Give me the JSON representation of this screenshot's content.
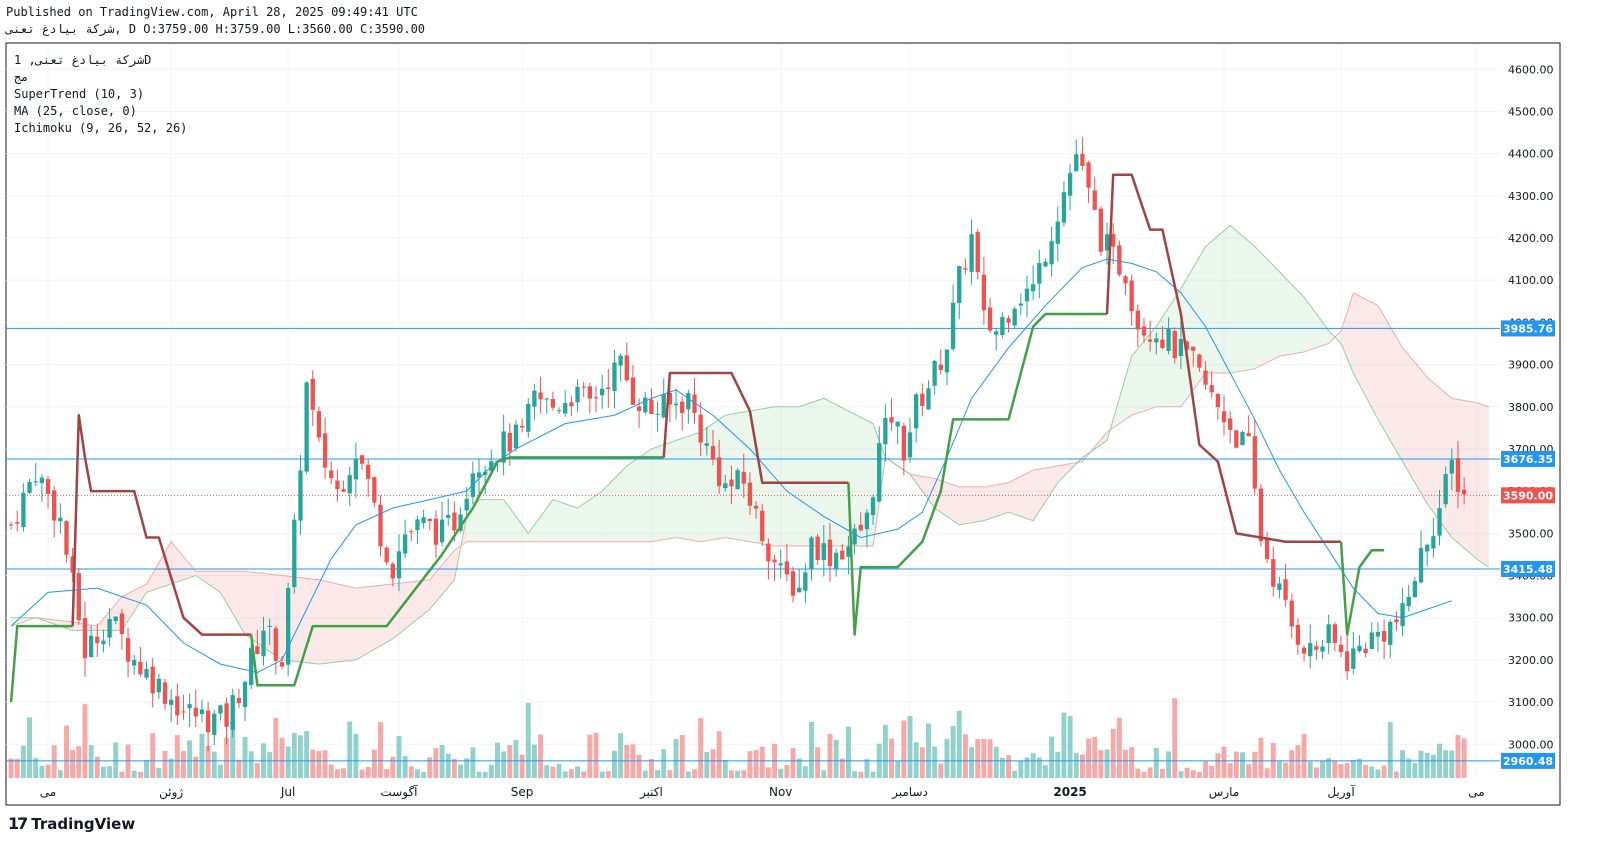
{
  "header": {
    "published": "Published on TradingView.com, April 28, 2025 09:49:41 UTC",
    "ohlc": "شرکة بیادغ تعنی, D O:3759.00 H:3759.00 L:3560.00 C:3590.00"
  },
  "legend": {
    "symbol": "شرکة بیادغ تعنی, 1D",
    "exchange": "مج",
    "supertrend": "SuperTrend (10, 3)",
    "ma": "MA (25, close, 0)",
    "ichimoku": "Ichimoku (9, 26, 52, 26)"
  },
  "brand": {
    "name": "TradingView",
    "logo_text": "17"
  },
  "colors": {
    "up": "#26a69a",
    "down": "#ef5350",
    "supertrend_up": "#43a047",
    "supertrend_down": "#a04343",
    "ma": "#2196f3",
    "cloud_green": "#a5d6a7",
    "cloud_red": "#ef9a9a",
    "hline": "#2196f3",
    "last": "#ef5350"
  },
  "chart_data": {
    "type": "candlestick",
    "symbol": "شرکة بیادغ تعنی",
    "interval": "1D",
    "y_ticks": [
      3000,
      3100,
      3200,
      3300,
      3400,
      3500,
      3600,
      3700,
      3800,
      3900,
      4000,
      4100,
      4200,
      4300,
      4400,
      4500,
      4600
    ],
    "y_tick_labels": [
      "3000.00",
      "3100.00",
      "3200.00",
      "3300.00",
      "3400.00",
      "3500.00",
      "3600.00",
      "3700.00",
      "3800.00",
      "3900.00",
      "4000.00",
      "4100.00",
      "4200.00",
      "4300.00",
      "4400.00",
      "4500.00",
      "4600.00"
    ],
    "ylim": [
      2920,
      4660
    ],
    "x_labels": [
      {
        "label": "می",
        "bar": 6
      },
      {
        "label": "ژوئن",
        "bar": 26
      },
      {
        "label": "Jul",
        "bar": 45
      },
      {
        "label": "آگوست",
        "bar": 63
      },
      {
        "label": "Sep",
        "bar": 83
      },
      {
        "label": "اکتبر",
        "bar": 104
      },
      {
        "label": "Nov",
        "bar": 125
      },
      {
        "label": "دسامبر",
        "bar": 146
      },
      {
        "label": "2025",
        "bar": 172
      },
      {
        "label": "مارس",
        "bar": 197
      },
      {
        "label": "آوریل",
        "bar": 216
      },
      {
        "label": "می",
        "bar": 238
      }
    ],
    "horizontal_levels": [
      3985.76,
      3676.35,
      3415.48,
      2960.48
    ],
    "last_price": 3590.0,
    "price_close_keypoints": [
      [
        0,
        3520
      ],
      [
        4,
        3650
      ],
      [
        8,
        3530
      ],
      [
        12,
        3220
      ],
      [
        16,
        3300
      ],
      [
        20,
        3200
      ],
      [
        24,
        3140
      ],
      [
        28,
        3080
      ],
      [
        32,
        3060
      ],
      [
        35,
        3060
      ],
      [
        38,
        3160
      ],
      [
        41,
        3280
      ],
      [
        44,
        3200
      ],
      [
        46,
        3500
      ],
      [
        48,
        3850
      ],
      [
        50,
        3700
      ],
      [
        53,
        3600
      ],
      [
        56,
        3700
      ],
      [
        58,
        3620
      ],
      [
        60,
        3500
      ],
      [
        62,
        3420
      ],
      [
        64,
        3500
      ],
      [
        67,
        3520
      ],
      [
        70,
        3500
      ],
      [
        72,
        3530
      ],
      [
        75,
        3660
      ],
      [
        78,
        3690
      ],
      [
        81,
        3720
      ],
      [
        83,
        3730
      ],
      [
        85,
        3820
      ],
      [
        88,
        3800
      ],
      [
        91,
        3830
      ],
      [
        94,
        3810
      ],
      [
        97,
        3870
      ],
      [
        99,
        3900
      ],
      [
        101,
        3830
      ],
      [
        104,
        3790
      ],
      [
        107,
        3800
      ],
      [
        110,
        3820
      ],
      [
        113,
        3700
      ],
      [
        116,
        3610
      ],
      [
        119,
        3620
      ],
      [
        122,
        3500
      ],
      [
        125,
        3400
      ],
      [
        128,
        3370
      ],
      [
        130,
        3480
      ],
      [
        133,
        3450
      ],
      [
        136,
        3470
      ],
      [
        139,
        3530
      ],
      [
        141,
        3700
      ],
      [
        143,
        3780
      ],
      [
        145,
        3700
      ],
      [
        147,
        3800
      ],
      [
        150,
        3880
      ],
      [
        152,
        3950
      ],
      [
        154,
        4100
      ],
      [
        156,
        4200
      ],
      [
        158,
        4000
      ],
      [
        160,
        3980
      ],
      [
        163,
        4060
      ],
      [
        166,
        4080
      ],
      [
        169,
        4220
      ],
      [
        171,
        4310
      ],
      [
        173,
        4400
      ],
      [
        175,
        4300
      ],
      [
        177,
        4200
      ],
      [
        179,
        4150
      ],
      [
        181,
        4120
      ],
      [
        183,
        4000
      ],
      [
        186,
        3980
      ],
      [
        189,
        3940
      ],
      [
        192,
        3900
      ],
      [
        195,
        3820
      ],
      [
        197,
        3780
      ],
      [
        199,
        3730
      ],
      [
        201,
        3700
      ],
      [
        203,
        3490
      ],
      [
        205,
        3400
      ],
      [
        208,
        3280
      ],
      [
        211,
        3220
      ],
      [
        214,
        3250
      ],
      [
        217,
        3200
      ],
      [
        220,
        3240
      ],
      [
        223,
        3270
      ],
      [
        226,
        3300
      ],
      [
        228,
        3400
      ],
      [
        230,
        3490
      ],
      [
        232,
        3560
      ],
      [
        234,
        3660
      ],
      [
        236,
        3590
      ]
    ],
    "supertrend_keypoints": [
      [
        0,
        3100,
        "up"
      ],
      [
        1,
        3280,
        "up"
      ],
      [
        10,
        3280,
        "up"
      ],
      [
        11,
        3780,
        "down"
      ],
      [
        12,
        3680,
        "down"
      ],
      [
        13,
        3600,
        "down"
      ],
      [
        20,
        3600,
        "down"
      ],
      [
        22,
        3490,
        "down"
      ],
      [
        24,
        3490,
        "down"
      ],
      [
        28,
        3300,
        "down"
      ],
      [
        31,
        3260,
        "down"
      ],
      [
        34,
        3260,
        "down"
      ],
      [
        39,
        3260,
        "down"
      ],
      [
        40,
        3140,
        "up"
      ],
      [
        46,
        3140,
        "up"
      ],
      [
        49,
        3280,
        "up"
      ],
      [
        61,
        3280,
        "up"
      ],
      [
        70,
        3450,
        "up"
      ],
      [
        75,
        3560,
        "up"
      ],
      [
        79,
        3670,
        "up"
      ],
      [
        81,
        3680,
        "up"
      ],
      [
        106,
        3680,
        "up"
      ],
      [
        107,
        3880,
        "down"
      ],
      [
        117,
        3880,
        "down"
      ],
      [
        120,
        3790,
        "down"
      ],
      [
        122,
        3620,
        "down"
      ],
      [
        136,
        3620,
        "down"
      ],
      [
        137,
        3260,
        "up"
      ],
      [
        138,
        3420,
        "up"
      ],
      [
        144,
        3420,
        "up"
      ],
      [
        148,
        3480,
        "up"
      ],
      [
        151,
        3600,
        "up"
      ],
      [
        153,
        3770,
        "up"
      ],
      [
        162,
        3770,
        "up"
      ],
      [
        166,
        3990,
        "up"
      ],
      [
        168,
        4020,
        "up"
      ],
      [
        178,
        4020,
        "up"
      ],
      [
        179,
        4350,
        "down"
      ],
      [
        182,
        4350,
        "down"
      ],
      [
        185,
        4220,
        "down"
      ],
      [
        187,
        4220,
        "down"
      ],
      [
        190,
        4020,
        "down"
      ],
      [
        193,
        3710,
        "down"
      ],
      [
        196,
        3670,
        "down"
      ],
      [
        199,
        3500,
        "down"
      ],
      [
        207,
        3480,
        "down"
      ],
      [
        216,
        3480,
        "down"
      ],
      [
        217,
        3260,
        "up"
      ],
      [
        219,
        3420,
        "up"
      ],
      [
        221,
        3460,
        "up"
      ],
      [
        223,
        3460,
        "up"
      ]
    ],
    "ma_keypoints": [
      [
        0,
        3280
      ],
      [
        6,
        3360
      ],
      [
        14,
        3370
      ],
      [
        22,
        3330
      ],
      [
        28,
        3240
      ],
      [
        34,
        3190
      ],
      [
        40,
        3170
      ],
      [
        44,
        3200
      ],
      [
        48,
        3320
      ],
      [
        52,
        3440
      ],
      [
        56,
        3520
      ],
      [
        62,
        3560
      ],
      [
        68,
        3580
      ],
      [
        74,
        3600
      ],
      [
        78,
        3660
      ],
      [
        82,
        3700
      ],
      [
        90,
        3760
      ],
      [
        98,
        3780
      ],
      [
        104,
        3820
      ],
      [
        108,
        3840
      ],
      [
        114,
        3780
      ],
      [
        120,
        3700
      ],
      [
        126,
        3600
      ],
      [
        132,
        3540
      ],
      [
        138,
        3490
      ],
      [
        144,
        3510
      ],
      [
        148,
        3550
      ],
      [
        152,
        3680
      ],
      [
        156,
        3820
      ],
      [
        162,
        3940
      ],
      [
        168,
        4040
      ],
      [
        174,
        4130
      ],
      [
        178,
        4150
      ],
      [
        182,
        4140
      ],
      [
        186,
        4120
      ],
      [
        190,
        4070
      ],
      [
        194,
        3990
      ],
      [
        198,
        3880
      ],
      [
        202,
        3770
      ],
      [
        206,
        3650
      ],
      [
        210,
        3550
      ],
      [
        214,
        3460
      ],
      [
        218,
        3370
      ],
      [
        222,
        3310
      ],
      [
        226,
        3300
      ],
      [
        230,
        3320
      ],
      [
        234,
        3340
      ]
    ],
    "cloud_keypoints": [
      [
        0,
        3280,
        3300
      ],
      [
        4,
        3300,
        3300
      ],
      [
        10,
        3290,
        3270
      ],
      [
        14,
        3280,
        3270
      ],
      [
        18,
        3350,
        3270
      ],
      [
        22,
        3380,
        3360
      ],
      [
        26,
        3480,
        3380
      ],
      [
        30,
        3410,
        3400
      ],
      [
        34,
        3410,
        3360
      ],
      [
        38,
        3410,
        3260
      ],
      [
        44,
        3400,
        3200
      ],
      [
        50,
        3390,
        3190
      ],
      [
        56,
        3370,
        3200
      ],
      [
        62,
        3380,
        3250
      ],
      [
        68,
        3390,
        3320
      ],
      [
        72,
        3460,
        3390
      ],
      [
        74,
        3480,
        3540
      ],
      [
        76,
        3480,
        3580
      ],
      [
        80,
        3480,
        3580
      ],
      [
        84,
        3480,
        3500
      ],
      [
        88,
        3480,
        3580
      ],
      [
        92,
        3480,
        3560
      ],
      [
        96,
        3480,
        3600
      ],
      [
        100,
        3480,
        3660
      ],
      [
        104,
        3480,
        3700
      ],
      [
        108,
        3490,
        3720
      ],
      [
        112,
        3480,
        3740
      ],
      [
        116,
        3490,
        3780
      ],
      [
        120,
        3480,
        3790
      ],
      [
        124,
        3470,
        3800
      ],
      [
        128,
        3470,
        3800
      ],
      [
        132,
        3470,
        3820
      ],
      [
        136,
        3470,
        3790
      ],
      [
        140,
        3470,
        3760
      ],
      [
        142,
        3680,
        3680
      ],
      [
        146,
        3640,
        3640
      ],
      [
        150,
        3630,
        3560
      ],
      [
        154,
        3610,
        3520
      ],
      [
        158,
        3610,
        3530
      ],
      [
        162,
        3620,
        3550
      ],
      [
        166,
        3650,
        3530
      ],
      [
        170,
        3660,
        3620
      ],
      [
        174,
        3670,
        3680
      ],
      [
        178,
        3740,
        3720
      ],
      [
        182,
        3780,
        3920
      ],
      [
        186,
        3800,
        3990
      ],
      [
        190,
        3800,
        4080
      ],
      [
        194,
        3880,
        4180
      ],
      [
        198,
        3880,
        4230
      ],
      [
        202,
        3890,
        4180
      ],
      [
        206,
        3920,
        4120
      ],
      [
        210,
        3930,
        4060
      ],
      [
        214,
        3950,
        3980
      ],
      [
        216,
        3980,
        3950
      ],
      [
        218,
        4070,
        3880
      ],
      [
        222,
        4040,
        3770
      ],
      [
        226,
        3940,
        3670
      ],
      [
        230,
        3870,
        3570
      ],
      [
        234,
        3820,
        3490
      ],
      [
        238,
        3810,
        3440
      ],
      [
        240,
        3800,
        3420
      ]
    ],
    "bars_visible": 237,
    "x_extent_bars": 242
  }
}
